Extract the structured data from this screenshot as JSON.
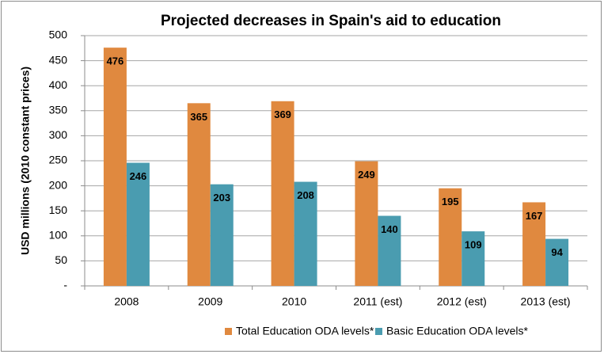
{
  "chart_data": {
    "type": "bar",
    "title": "Projected decreases in Spain's aid to education",
    "y_label": "USD millions (2010 constant prices)",
    "categories": [
      "2008",
      "2009",
      "2010",
      "2011 (est)",
      "2012 (est)",
      "2013 (est)"
    ],
    "series": [
      {
        "name": "Total Education ODA levels*",
        "color": "#e0893f",
        "values": [
          476,
          365,
          369,
          249,
          195,
          167
        ]
      },
      {
        "name": "Basic Education ODA levels*",
        "color": "#4a9cb0",
        "values": [
          246,
          203,
          208,
          140,
          109,
          94
        ]
      }
    ],
    "ylim": [
      0,
      500
    ],
    "yticks": [
      {
        "value": 0,
        "label": "-"
      },
      50,
      100,
      150,
      200,
      250,
      300,
      350,
      400,
      450,
      500
    ],
    "grid": true,
    "legend": "bottom"
  }
}
